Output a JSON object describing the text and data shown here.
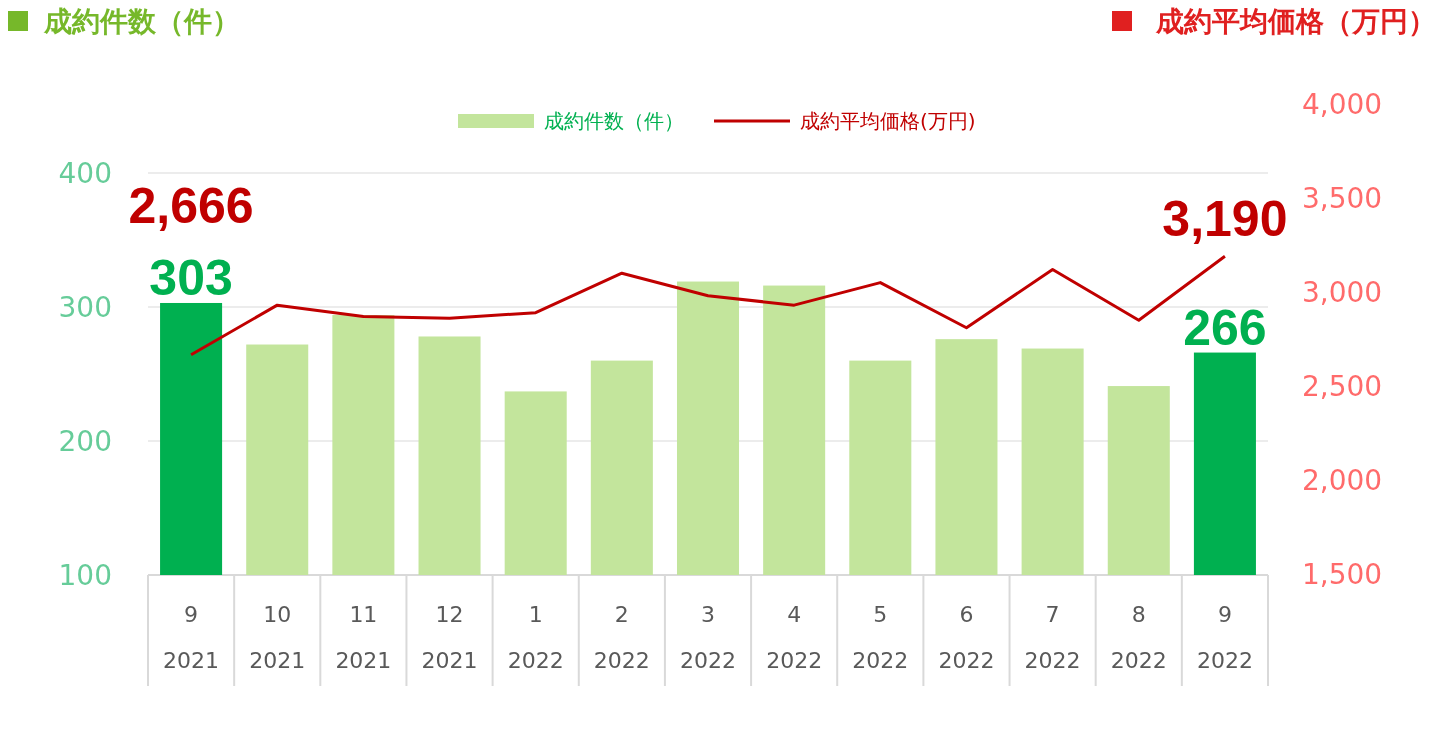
{
  "chart_data": {
    "type": "bar",
    "ylabel": "成約件数（件）",
    "y2label": "成約平均価格（万円）",
    "categories": [
      "9\n2021",
      "10\n2021",
      "11\n2021",
      "12\n2021",
      "1\n2022",
      "2\n2022",
      "3\n2022",
      "4\n2022",
      "5\n2022",
      "6\n2022",
      "7\n2022",
      "8\n2022",
      "9\n2022"
    ],
    "series": [
      {
        "name": "成約件数（件）",
        "color": "#c3e59c",
        "colors": [
          "#00b050",
          "#c3e59c",
          "#c3e59c",
          "#c3e59c",
          "#c3e59c",
          "#c3e59c",
          "#c3e59c",
          "#c3e59c",
          "#c3e59c",
          "#c3e59c",
          "#c3e59c",
          "#c3e59c",
          "#00b050"
        ],
        "values": [
          303,
          272,
          294,
          278,
          237,
          260,
          319,
          316,
          260,
          276,
          269,
          241,
          266
        ],
        "value_labels": [
          "303",
          null,
          null,
          null,
          null,
          null,
          null,
          null,
          null,
          null,
          null,
          null,
          "266"
        ]
      },
      {
        "name": "成約平均価格(万円)",
        "type": "line",
        "axis": "y2",
        "color": "#c00000",
        "values": [
          2666,
          2930,
          2870,
          2860,
          2890,
          3100,
          2980,
          2930,
          3050,
          2810,
          3120,
          2850,
          3190
        ],
        "value_labels": [
          "2,666",
          null,
          null,
          null,
          null,
          null,
          null,
          null,
          null,
          null,
          null,
          null,
          "3,190"
        ]
      }
    ],
    "ylim": [
      100,
      400
    ],
    "yticks": [
      100,
      200,
      300,
      400
    ],
    "y2lim": [
      1500,
      4000
    ],
    "y2ticks": [
      {
        "value": 1500,
        "label": "1,500"
      },
      {
        "value": 2000,
        "label": "2,000"
      },
      {
        "value": 2500,
        "label": "2,500"
      },
      {
        "value": 3000,
        "label": "3,000"
      },
      {
        "value": 3500,
        "label": "3,500"
      },
      {
        "value": 4000,
        "label": "4,000"
      }
    ],
    "grid": "y",
    "legend": "top",
    "marker": "none"
  }
}
